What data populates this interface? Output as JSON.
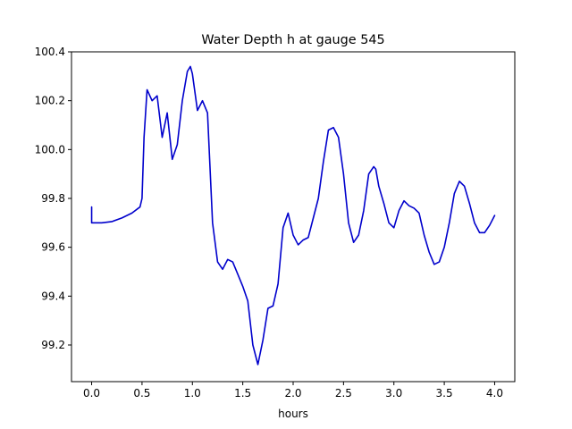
{
  "chart_data": {
    "type": "line",
    "title": "Water Depth h at gauge 545",
    "xlabel": "hours",
    "ylabel": "",
    "xlim": [
      -0.2,
      4.2
    ],
    "ylim": [
      99.05,
      100.4
    ],
    "xticks": [
      0.0,
      0.5,
      1.0,
      1.5,
      2.0,
      2.5,
      3.0,
      3.5,
      4.0
    ],
    "xtick_labels": [
      "0.0",
      "0.5",
      "1.0",
      "1.5",
      "2.0",
      "2.5",
      "3.0",
      "3.5",
      "4.0"
    ],
    "yticks": [
      99.2,
      99.4,
      99.6,
      99.8,
      100.0,
      100.2,
      100.4
    ],
    "ytick_labels": [
      "99.2",
      "99.4",
      "99.6",
      "99.8",
      "100.0",
      "100.2",
      "100.4"
    ],
    "grid": false,
    "line_color": "#0000cc",
    "series": [
      {
        "x": [
          0.0,
          0.0,
          0.1,
          0.2,
          0.3,
          0.4,
          0.48,
          0.5,
          0.52,
          0.55,
          0.6,
          0.65,
          0.7,
          0.75,
          0.8,
          0.85,
          0.9,
          0.95,
          0.98,
          1.0,
          1.05,
          1.1,
          1.15,
          1.2,
          1.25,
          1.3,
          1.35,
          1.4,
          1.45,
          1.5,
          1.55,
          1.6,
          1.65,
          1.7,
          1.75,
          1.8,
          1.85,
          1.9,
          1.95,
          2.0,
          2.05,
          2.1,
          2.15,
          2.2,
          2.25,
          2.3,
          2.35,
          2.4,
          2.45,
          2.5,
          2.55,
          2.6,
          2.65,
          2.7,
          2.75,
          2.8,
          2.82,
          2.85,
          2.9,
          2.95,
          3.0,
          3.05,
          3.1,
          3.15,
          3.2,
          3.25,
          3.3,
          3.35,
          3.4,
          3.45,
          3.5,
          3.55,
          3.6,
          3.65,
          3.7,
          3.75,
          3.8,
          3.85,
          3.9,
          3.95,
          4.0
        ],
        "y": [
          99.765,
          99.7,
          99.7,
          99.705,
          99.72,
          99.74,
          99.765,
          99.8,
          100.05,
          100.245,
          100.2,
          100.22,
          100.05,
          100.15,
          99.96,
          100.02,
          100.2,
          100.32,
          100.34,
          100.31,
          100.16,
          100.2,
          100.15,
          99.7,
          99.54,
          99.51,
          99.55,
          99.54,
          99.49,
          99.44,
          99.38,
          99.2,
          99.12,
          99.22,
          99.35,
          99.36,
          99.45,
          99.68,
          99.74,
          99.65,
          99.61,
          99.63,
          99.64,
          99.72,
          99.8,
          99.95,
          100.08,
          100.09,
          100.05,
          99.9,
          99.7,
          99.62,
          99.65,
          99.75,
          99.9,
          99.93,
          99.92,
          99.85,
          99.78,
          99.7,
          99.68,
          99.75,
          99.79,
          99.77,
          99.76,
          99.74,
          99.65,
          99.58,
          99.53,
          99.54,
          99.6,
          99.7,
          99.82,
          99.87,
          99.85,
          99.78,
          99.7,
          99.66,
          99.66,
          99.69,
          99.73
        ]
      }
    ]
  }
}
